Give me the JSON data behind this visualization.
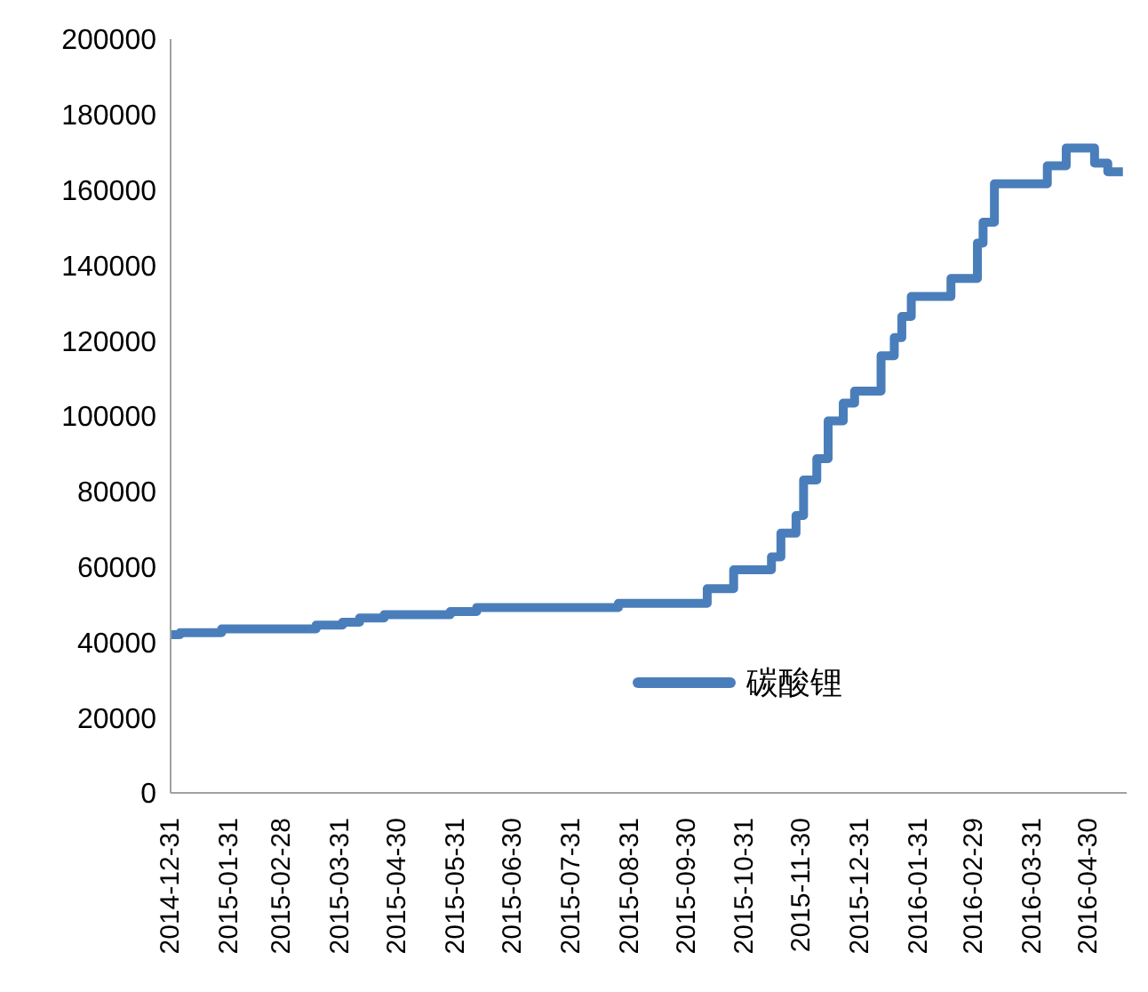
{
  "chart_data": {
    "type": "step",
    "x": [
      "2014-12-31",
      "2015-01-05",
      "2015-01-27",
      "2015-03-18",
      "2015-04-01",
      "2015-04-10",
      "2015-04-23",
      "2015-05-28",
      "2015-06-11",
      "2015-08-25",
      "2015-10-11",
      "2015-10-25",
      "2015-11-14",
      "2015-11-19",
      "2015-11-27",
      "2015-12-01",
      "2015-12-08",
      "2015-12-14",
      "2015-12-22",
      "2015-12-28",
      "2016-01-11",
      "2016-01-18",
      "2016-01-22",
      "2016-01-27",
      "2016-02-17",
      "2016-03-02",
      "2016-03-05",
      "2016-03-11",
      "2016-04-08",
      "2016-04-18",
      "2016-05-03",
      "2016-05-10",
      "2016-05-18"
    ],
    "series": [
      {
        "name": "碳酸锂",
        "color": "#4a7ebb",
        "values": [
          42000,
          42500,
          43500,
          44500,
          45300,
          46400,
          47300,
          48100,
          49200,
          50300,
          54200,
          59200,
          62600,
          68900,
          73600,
          83000,
          88700,
          98700,
          103400,
          106600,
          116000,
          120800,
          126400,
          131700,
          136500,
          145900,
          151400,
          161600,
          166400,
          171100,
          167100,
          164800,
          164800
        ]
      }
    ],
    "xlim": [
      "2014-12-31",
      "2016-05-20"
    ],
    "xticks": [
      "2014-12-31",
      "2015-01-31",
      "2015-02-28",
      "2015-03-31",
      "2015-04-30",
      "2015-05-31",
      "2015-06-30",
      "2015-07-31",
      "2015-08-31",
      "2015-09-30",
      "2015-10-31",
      "2015-11-30",
      "2015-12-31",
      "2016-01-31",
      "2016-02-29",
      "2016-03-31",
      "2016-04-30"
    ],
    "ylim": [
      0,
      200000
    ],
    "yticks": [
      0,
      20000,
      40000,
      60000,
      80000,
      100000,
      120000,
      140000,
      160000,
      180000,
      200000
    ],
    "legend": "center",
    "grid": false
  }
}
